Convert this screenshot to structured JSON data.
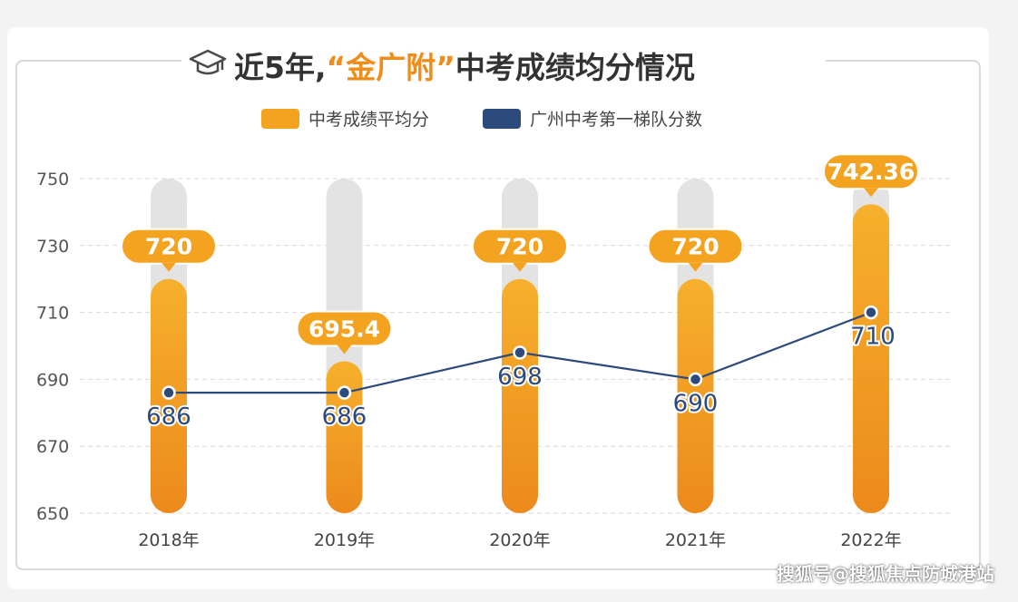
{
  "chart_data": {
    "type": "bar",
    "title_parts": [
      "近5年,",
      "“金广附”",
      "中考成绩均分情况"
    ],
    "categories": [
      "2018年",
      "2019年",
      "2020年",
      "2021年",
      "2022年"
    ],
    "series": [
      {
        "name": "中考成绩平均分",
        "type": "bar",
        "values": [
          720,
          695.4,
          720,
          720,
          742.36
        ],
        "labels": [
          "720",
          "695.4",
          "720",
          "720",
          "742.36"
        ],
        "color": "#f4a320"
      },
      {
        "name": "广州中考第一梯队分数",
        "type": "line",
        "values": [
          686,
          686,
          698,
          690,
          710
        ],
        "labels": [
          "686",
          "686",
          "698",
          "690",
          "710"
        ],
        "color": "#2d4a7c"
      }
    ],
    "ylim": [
      650,
      750
    ],
    "yticks": [
      650,
      670,
      690,
      710,
      730,
      750
    ],
    "grid": true,
    "legend_position": "top"
  },
  "colors": {
    "bar": "#f4a320",
    "bar_dark": "#ec8a1c",
    "track": "#e3e3e3",
    "line": "#2d4a7c",
    "title_text": "#333333",
    "title_accent": "#f08c1a"
  },
  "icons": {
    "title_icon": "graduation-cap-icon"
  },
  "watermark": "搜狐号@搜狐焦点防城港站"
}
